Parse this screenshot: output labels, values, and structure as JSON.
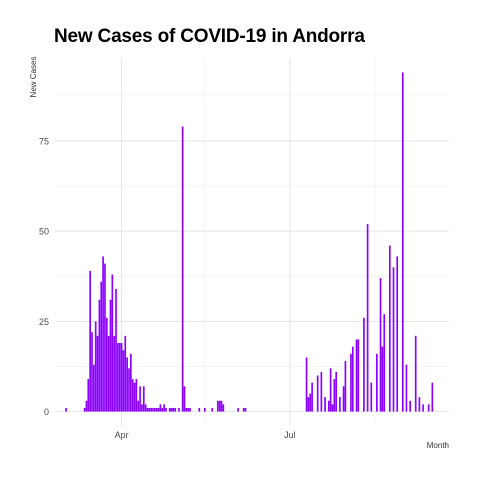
{
  "chart_data": {
    "type": "bar",
    "title": "New Cases of COVID-19 in Andorra",
    "xlabel": "Month",
    "ylabel": "New Cases",
    "x_ticks": [
      "Apr",
      "Jul"
    ],
    "y_ticks": [
      0,
      25,
      50,
      75
    ],
    "ylim": [
      -4,
      98
    ],
    "xlim": [
      "2020-02-25",
      "2020-09-25"
    ],
    "grid": true,
    "color": "#8B00FF",
    "x": [
      "2020-03-02",
      "2020-03-12",
      "2020-03-13",
      "2020-03-14",
      "2020-03-15",
      "2020-03-16",
      "2020-03-17",
      "2020-03-18",
      "2020-03-19",
      "2020-03-20",
      "2020-03-21",
      "2020-03-22",
      "2020-03-23",
      "2020-03-24",
      "2020-03-25",
      "2020-03-26",
      "2020-03-27",
      "2020-03-28",
      "2020-03-29",
      "2020-03-30",
      "2020-03-31",
      "2020-04-01",
      "2020-04-02",
      "2020-04-03",
      "2020-04-04",
      "2020-04-05",
      "2020-04-06",
      "2020-04-07",
      "2020-04-08",
      "2020-04-09",
      "2020-04-10",
      "2020-04-11",
      "2020-04-12",
      "2020-04-13",
      "2020-04-14",
      "2020-04-15",
      "2020-04-16",
      "2020-04-17",
      "2020-04-18",
      "2020-04-19",
      "2020-04-20",
      "2020-04-21",
      "2020-04-22",
      "2020-04-23",
      "2020-04-24",
      "2020-04-25",
      "2020-04-27",
      "2020-04-28",
      "2020-04-29",
      "2020-04-30",
      "2020-05-02",
      "2020-05-04",
      "2020-05-05",
      "2020-05-06",
      "2020-05-07",
      "2020-05-08",
      "2020-05-13",
      "2020-05-16",
      "2020-05-20",
      "2020-05-23",
      "2020-05-24",
      "2020-05-25",
      "2020-05-26",
      "2020-06-03",
      "2020-06-06",
      "2020-06-07",
      "2020-07-10",
      "2020-07-11",
      "2020-07-12",
      "2020-07-13",
      "2020-07-16",
      "2020-07-18",
      "2020-07-20",
      "2020-07-22",
      "2020-07-23",
      "2020-07-24",
      "2020-07-25",
      "2020-07-26",
      "2020-07-28",
      "2020-07-30",
      "2020-07-31",
      "2020-08-03",
      "2020-08-04",
      "2020-08-06",
      "2020-08-07",
      "2020-08-10",
      "2020-08-12",
      "2020-08-14",
      "2020-08-17",
      "2020-08-19",
      "2020-08-20",
      "2020-08-21",
      "2020-08-24",
      "2020-08-26",
      "2020-08-28",
      "2020-08-31",
      "2020-09-02",
      "2020-09-04",
      "2020-09-07",
      "2020-09-09",
      "2020-09-11",
      "2020-09-14",
      "2020-09-16"
    ],
    "values": [
      1,
      1,
      3,
      9,
      39,
      22,
      13,
      25,
      21,
      31,
      36,
      43,
      41,
      26,
      21,
      31,
      38,
      21,
      34,
      19,
      19,
      19,
      17,
      21,
      15,
      12,
      16,
      9,
      8,
      9,
      3,
      7,
      2,
      7,
      2,
      1,
      1,
      1,
      1,
      1,
      1,
      1,
      2,
      1,
      2,
      1,
      1,
      1,
      1,
      1,
      1,
      79,
      7,
      1,
      1,
      1,
      1,
      1,
      1,
      3,
      3,
      3,
      2,
      1,
      1,
      1,
      15,
      4,
      5,
      8,
      10,
      11,
      4,
      3,
      12,
      2,
      9,
      11,
      4,
      7,
      14,
      16,
      18,
      20,
      20,
      26,
      52,
      8,
      16,
      37,
      18,
      27,
      46,
      40,
      43,
      94,
      13,
      3,
      21,
      4,
      2,
      2,
      8
    ]
  }
}
